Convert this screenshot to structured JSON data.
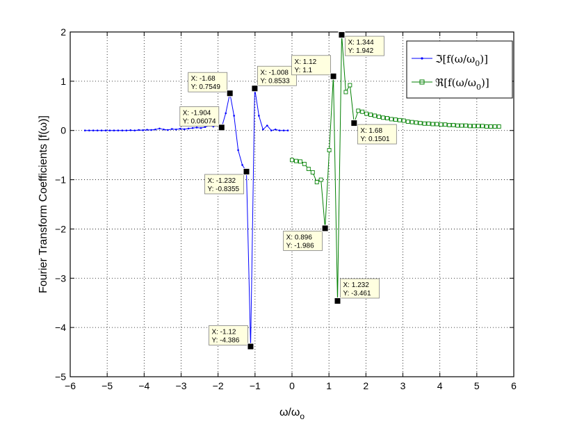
{
  "chart_data": {
    "type": "line",
    "title": "",
    "xlabel_main": "ω/ω",
    "xlabel_sub": "o",
    "ylabel": "Fourier Transform Coefficients [f(ω)]",
    "xlim": [
      -6,
      6
    ],
    "ylim": [
      -5,
      2
    ],
    "xticks": [
      -6,
      -5,
      -4,
      -3,
      -2,
      -1,
      0,
      1,
      2,
      3,
      4,
      5,
      6
    ],
    "yticks": [
      -5,
      -4,
      -3,
      -2,
      -1,
      0,
      1,
      2
    ],
    "xtick_labels": [
      "−6",
      "−5",
      "−4",
      "−3",
      "−2",
      "−1",
      "0",
      "1",
      "2",
      "3",
      "4",
      "5",
      "6"
    ],
    "ytick_labels": [
      "−5",
      "−4",
      "−3",
      "−2",
      "−1",
      "0",
      "1",
      "2"
    ],
    "grid": true,
    "legend_position": "top-right",
    "series": [
      {
        "name_main": "ℑ[f(ω/ω",
        "name_sub": "0",
        "name_tail": ")]",
        "color": "#0000ff",
        "marker": "dot",
        "x": [
          -5.6,
          -5.488,
          -5.376,
          -5.264,
          -5.152,
          -5.04,
          -4.928,
          -4.816,
          -4.704,
          -4.592,
          -4.48,
          -4.368,
          -4.256,
          -4.144,
          -4.032,
          -3.92,
          -3.808,
          -3.696,
          -3.584,
          -3.472,
          -3.36,
          -3.248,
          -3.136,
          -3.024,
          -2.912,
          -2.8,
          -2.688,
          -2.576,
          -2.464,
          -2.352,
          -2.24,
          -2.128,
          -2.016,
          -1.904,
          -1.792,
          -1.68,
          -1.568,
          -1.456,
          -1.344,
          -1.232,
          -1.12,
          -1.008,
          -0.896,
          -0.784,
          -0.672,
          -0.56,
          -0.448,
          -0.336,
          -0.224,
          -0.112
        ],
        "y": [
          0.0,
          0.0,
          0.0,
          0.0,
          0.0,
          0.0,
          0.0,
          0.0,
          0.0,
          0.0,
          0.0,
          0.005,
          0.0,
          0.01,
          0.005,
          0.015,
          0.01,
          0.02,
          0.04,
          0.02,
          0.01,
          0.03,
          0.02,
          0.035,
          0.025,
          0.04,
          0.05,
          0.06,
          0.05,
          0.07,
          0.1,
          0.08,
          0.11,
          0.06074,
          0.35,
          0.7549,
          0.3,
          -0.4,
          -0.7,
          -0.8355,
          -4.386,
          0.8533,
          0.3,
          0.02,
          0.1,
          0.0,
          0.02,
          0.0,
          0.0,
          0.0
        ]
      },
      {
        "name_main": "ℜ[f(ω/ω",
        "name_sub": "0",
        "name_tail": ")]",
        "color": "#007f00",
        "marker": "square",
        "x": [
          0.0,
          0.112,
          0.224,
          0.336,
          0.448,
          0.56,
          0.672,
          0.784,
          0.896,
          1.008,
          1.12,
          1.232,
          1.344,
          1.456,
          1.568,
          1.68,
          1.792,
          1.904,
          2.016,
          2.128,
          2.24,
          2.352,
          2.464,
          2.576,
          2.688,
          2.8,
          2.912,
          3.024,
          3.136,
          3.248,
          3.36,
          3.472,
          3.584,
          3.696,
          3.808,
          3.92,
          4.032,
          4.144,
          4.256,
          4.368,
          4.48,
          4.592,
          4.704,
          4.816,
          4.928,
          5.04,
          5.152,
          5.264,
          5.376,
          5.488,
          5.6
        ],
        "y": [
          -0.6,
          -0.62,
          -0.63,
          -0.68,
          -0.78,
          -0.85,
          -1.05,
          -1.0,
          -1.986,
          -0.4,
          1.1,
          -3.461,
          1.942,
          0.78,
          0.92,
          0.1501,
          0.4,
          0.38,
          0.34,
          0.32,
          0.3,
          0.28,
          0.26,
          0.25,
          0.23,
          0.22,
          0.21,
          0.2,
          0.18,
          0.17,
          0.16,
          0.15,
          0.14,
          0.14,
          0.13,
          0.13,
          0.12,
          0.12,
          0.11,
          0.11,
          0.1,
          0.1,
          0.1,
          0.09,
          0.09,
          0.09,
          0.09,
          0.08,
          0.08,
          0.08,
          0.08
        ]
      }
    ],
    "annotations": [
      {
        "x": -1.904,
        "y": 0.06074,
        "line1": "X: -1.904",
        "line2": "Y: 0.06074",
        "place": "upper-left"
      },
      {
        "x": -1.68,
        "y": 0.7549,
        "line1": "X: -1.68",
        "line2": "Y: 0.7549",
        "place": "upper-left"
      },
      {
        "x": -1.008,
        "y": 0.8533,
        "line1": "X: -1.008",
        "line2": "Y: 0.8533",
        "place": "upper-right"
      },
      {
        "x": -1.232,
        "y": -0.8355,
        "line1": "X: -1.232",
        "line2": "Y: -0.8355",
        "place": "lower-left"
      },
      {
        "x": -1.12,
        "y": -4.386,
        "line1": "X: -1.12",
        "line2": "Y: -4.386",
        "place": "upper-left"
      },
      {
        "x": 1.12,
        "y": 1.1,
        "line1": "X: 1.12",
        "line2": "Y: 1.1",
        "place": "upper-left"
      },
      {
        "x": 1.344,
        "y": 1.942,
        "line1": "X: 1.344",
        "line2": "Y: 1.942",
        "place": "lower-right"
      },
      {
        "x": 1.68,
        "y": 0.1501,
        "line1": "X: 1.68",
        "line2": "Y: 0.1501",
        "place": "lower-right"
      },
      {
        "x": 0.896,
        "y": -1.986,
        "line1": "X: 0.896",
        "line2": "Y: -1.986",
        "place": "lower-left"
      },
      {
        "x": 1.232,
        "y": -3.461,
        "line1": "X: 1.232",
        "line2": "Y: -3.461",
        "place": "upper-right"
      }
    ]
  }
}
